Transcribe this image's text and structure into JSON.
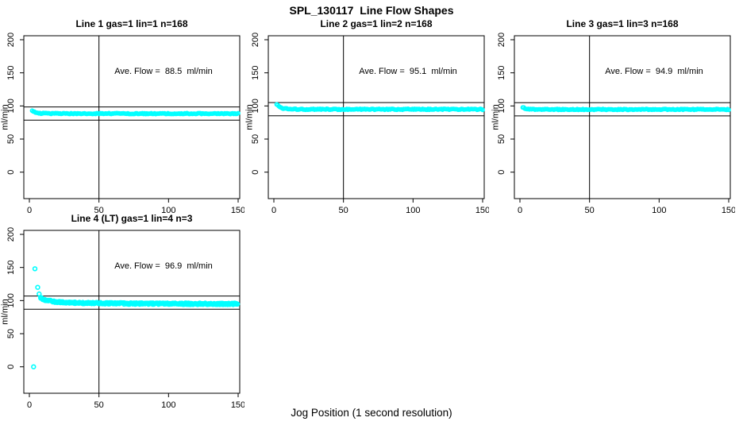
{
  "chart_data": {
    "type": "scatter",
    "title": "SPL_130117  Line Flow Shapes",
    "xlabel": "Jog Position (1 second resolution)",
    "ylabel": "ml/min",
    "x_ticks": [
      0,
      50,
      100,
      150
    ],
    "y_ticks": [
      0,
      50,
      100,
      150,
      200
    ],
    "xlim": [
      -4,
      157
    ],
    "ylim": [
      -40,
      207
    ],
    "vline_x": 50,
    "point_color": "#00FFFF",
    "line_color": "#000000",
    "grid": false,
    "legend": "none",
    "panels": [
      {
        "title": "Line 1 gas=1 lin=1 n=168",
        "ave_flow": 88.5,
        "ave_label": "Ave. Flow =  88.5  ml/min",
        "hlines": [
          98.5,
          78.5
        ],
        "profile_x": [
          2,
          3,
          4,
          5,
          7,
          10,
          15,
          25,
          50,
          100,
          150
        ],
        "profile_y": [
          93.5,
          91.5,
          90.3,
          89.6,
          89.0,
          88.7,
          88.5,
          88.4,
          88.4,
          88.4,
          88.4
        ],
        "band_halfwidth": 0.7,
        "passes": 1,
        "outliers": []
      },
      {
        "title": "Line 2 gas=1 lin=2 n=168",
        "ave_flow": 95.1,
        "ave_label": "Ave. Flow =  95.1  ml/min",
        "hlines": [
          105.1,
          85.1
        ],
        "profile_x": [
          2,
          3,
          4,
          5,
          7,
          10,
          15,
          25,
          50,
          100,
          150
        ],
        "profile_y": [
          103.0,
          100.5,
          98.6,
          97.4,
          96.2,
          95.5,
          95.1,
          94.9,
          94.9,
          94.9,
          94.9
        ],
        "band_halfwidth": 0.8,
        "passes": 1,
        "outliers": []
      },
      {
        "title": "Line 3 gas=1 lin=3 n=168",
        "ave_flow": 94.9,
        "ave_label": "Ave. Flow =  94.9  ml/min",
        "hlines": [
          104.9,
          84.9
        ],
        "profile_x": [
          2,
          3,
          4,
          5,
          7,
          10,
          15,
          25,
          50,
          100,
          150
        ],
        "profile_y": [
          98.0,
          96.9,
          96.2,
          95.7,
          95.2,
          95.0,
          94.8,
          94.7,
          94.7,
          94.7,
          94.7
        ],
        "band_halfwidth": 0.65,
        "passes": 1,
        "outliers": []
      },
      {
        "title": "Line 4 (LT) gas=1 lin=4 n=3",
        "ave_flow": 96.9,
        "ave_label": "Ave. Flow =  96.9  ml/min",
        "hlines": [
          106.9,
          86.9
        ],
        "profile_x": [
          8,
          10,
          13,
          18,
          25,
          40,
          70,
          110,
          150
        ],
        "profile_y": [
          104.5,
          102.0,
          100.0,
          98.3,
          97.2,
          96.3,
          95.6,
          95.2,
          95.0
        ],
        "band_halfwidth": 1.5,
        "passes": 3,
        "outliers": [
          [
            3,
            0
          ],
          [
            4,
            148
          ],
          [
            6,
            120
          ],
          [
            7,
            110
          ]
        ]
      }
    ]
  }
}
